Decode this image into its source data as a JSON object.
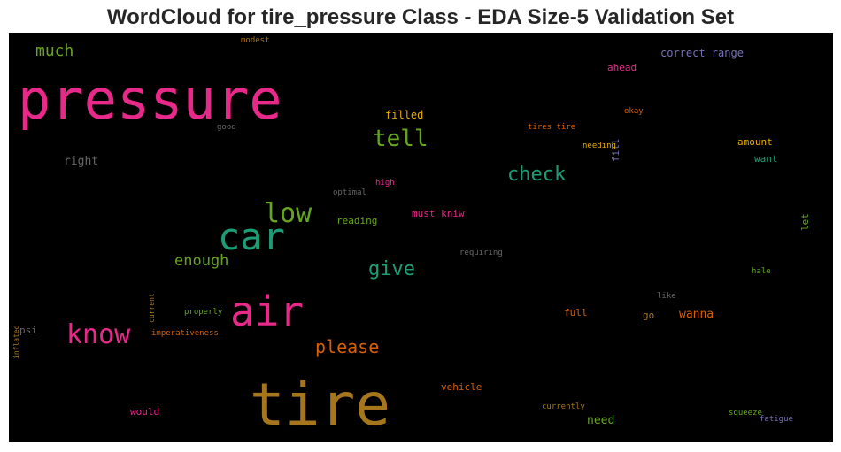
{
  "chart_data": {
    "type": "wordcloud",
    "title": "WordCloud for tire_pressure Class - EDA Size-5 Validation Set",
    "background": "#000000",
    "palette": "Dark2",
    "words": [
      {
        "text": "pressure",
        "color": "#e7298a"
      },
      {
        "text": "tire",
        "color": "#a6761d"
      },
      {
        "text": "car",
        "color": "#1b9e77"
      },
      {
        "text": "air",
        "color": "#e7298a"
      },
      {
        "text": "low",
        "color": "#66a61e"
      },
      {
        "text": "know",
        "color": "#e7298a"
      },
      {
        "text": "tell",
        "color": "#66a61e"
      },
      {
        "text": "check",
        "color": "#1b9e77"
      },
      {
        "text": "give",
        "color": "#1b9e77"
      },
      {
        "text": "please",
        "color": "#d95f02"
      },
      {
        "text": "enough",
        "color": "#66a61e"
      },
      {
        "text": "much",
        "color": "#66a61e"
      },
      {
        "text": "right",
        "color": "#666666"
      },
      {
        "text": "filled",
        "color": "#e6ab02"
      },
      {
        "text": "wanna",
        "color": "#d95f02"
      },
      {
        "text": "need",
        "color": "#66a61e"
      },
      {
        "text": "correct range",
        "color": "#7570b3"
      },
      {
        "text": "ahead",
        "color": "#e7298a"
      },
      {
        "text": "must kniw",
        "color": "#e7298a"
      },
      {
        "text": "reading",
        "color": "#66a61e"
      },
      {
        "text": "amount",
        "color": "#e6ab02"
      },
      {
        "text": "want",
        "color": "#1b9e77"
      },
      {
        "text": "full",
        "color": "#d95f02"
      },
      {
        "text": "vehicle",
        "color": "#d95f02"
      },
      {
        "text": "would",
        "color": "#e7298a"
      },
      {
        "text": "go",
        "color": "#a6761d"
      },
      {
        "text": "let",
        "color": "#66a61e"
      },
      {
        "text": "fill",
        "color": "#7570b3"
      },
      {
        "text": "psi",
        "color": "#666666"
      },
      {
        "text": "modest",
        "color": "#a6761d"
      },
      {
        "text": "good",
        "color": "#666666"
      },
      {
        "text": "tires tire",
        "color": "#d95f02"
      },
      {
        "text": "okay",
        "color": "#d95f02"
      },
      {
        "text": "needing",
        "color": "#e6ab02"
      },
      {
        "text": "high",
        "color": "#e7298a"
      },
      {
        "text": "optimal",
        "color": "#666666"
      },
      {
        "text": "requiring",
        "color": "#666666"
      },
      {
        "text": "current",
        "color": "#a6761d"
      },
      {
        "text": "inflated",
        "color": "#a6761d"
      },
      {
        "text": "properly",
        "color": "#66a61e"
      },
      {
        "text": "imperativeness",
        "color": "#d95f02"
      },
      {
        "text": "hale",
        "color": "#66a61e"
      },
      {
        "text": "like",
        "color": "#666666"
      },
      {
        "text": "currently",
        "color": "#a6761d"
      },
      {
        "text": "squeeze",
        "color": "#66a61e"
      },
      {
        "text": "fatigue",
        "color": "#7570b3"
      }
    ]
  }
}
